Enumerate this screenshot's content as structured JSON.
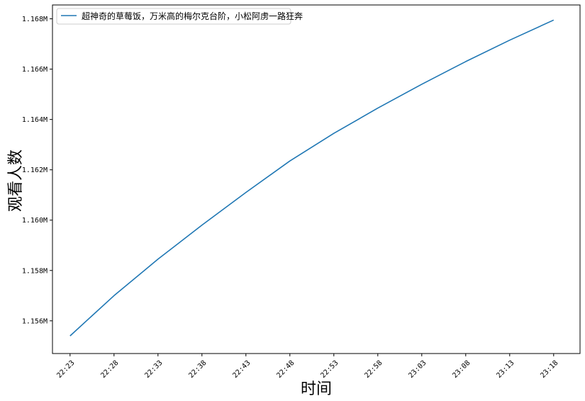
{
  "chart_data": {
    "type": "line",
    "xlabel": "时间",
    "ylabel": "观看人数",
    "x_ticks": [
      "22:23",
      "22:28",
      "22:33",
      "22:38",
      "22:43",
      "22:48",
      "22:53",
      "22:58",
      "23:03",
      "23:08",
      "23:13",
      "23:18"
    ],
    "y_ticks": [
      {
        "value": 1156000,
        "label": "1.156M"
      },
      {
        "value": 1158000,
        "label": "1.158M"
      },
      {
        "value": 1160000,
        "label": "1.160M"
      },
      {
        "value": 1162000,
        "label": "1.162M"
      },
      {
        "value": 1164000,
        "label": "1.164M"
      },
      {
        "value": 1166000,
        "label": "1.166M"
      },
      {
        "value": 1168000,
        "label": "1.168M"
      }
    ],
    "ylim": [
      1154700,
      1168550
    ],
    "xlim": [
      "22:21",
      "23:21"
    ],
    "grid": false,
    "legend_position": "upper-left",
    "series": [
      {
        "name": "超神奇的草莓饭，万米高的梅尔克台阶，小松阿虏一路狂奔",
        "color": "#1f77b4",
        "x": [
          "22:23",
          "22:28",
          "22:33",
          "22:38",
          "22:43",
          "22:48",
          "22:53",
          "22:58",
          "23:03",
          "23:08",
          "23:13",
          "23:18"
        ],
        "values": [
          1155400,
          1157000,
          1158450,
          1159800,
          1161100,
          1162350,
          1163450,
          1164450,
          1165400,
          1166300,
          1167150,
          1167950
        ]
      }
    ]
  }
}
